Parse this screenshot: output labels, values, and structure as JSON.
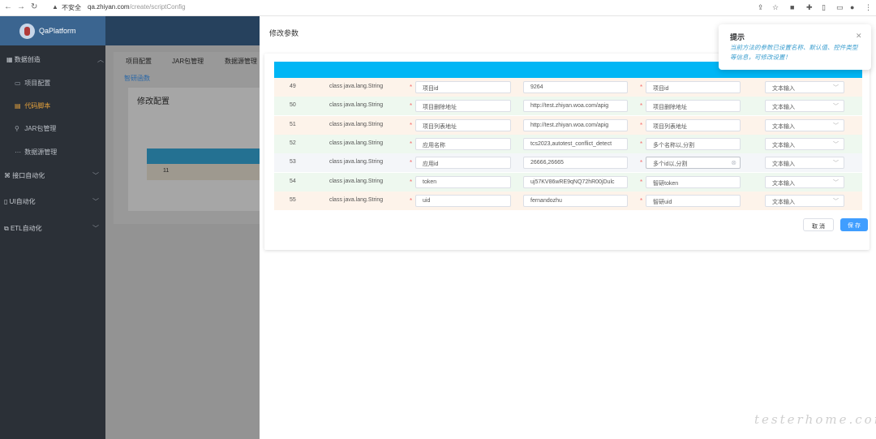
{
  "browser": {
    "security_label": "不安全",
    "url_host": "qa.zhiyan.com",
    "url_path": "/create/scriptConfig"
  },
  "app": {
    "name": "QaPlatform"
  },
  "sidebar": {
    "groups": [
      {
        "label": "数据创造"
      },
      {
        "label": "接口自动化"
      },
      {
        "label": "UI自动化"
      },
      {
        "label": "ETL自动化"
      }
    ],
    "items": [
      {
        "label": "项目配置"
      },
      {
        "label": "代码脚本"
      },
      {
        "label": "JAR包管理"
      },
      {
        "label": "数据源管理"
      }
    ]
  },
  "background_page": {
    "tabs": [
      "项目配置",
      "JAR包管理",
      "数据源管理"
    ],
    "link": "智研函数",
    "panel_title": "修改配置",
    "row_value": "11"
  },
  "dialog": {
    "title": "修改参数",
    "rows": [
      {
        "index": "49",
        "type": "class java.lang.String",
        "name": "项目id",
        "default": "9264",
        "hint": "项目id",
        "control": "文本输入"
      },
      {
        "index": "50",
        "type": "class java.lang.String",
        "name": "项目删除地址",
        "default": "http://test.zhiyan.woa.com/apig",
        "hint": "项目删除地址",
        "control": "文本输入"
      },
      {
        "index": "51",
        "type": "class java.lang.String",
        "name": "项目列表地址",
        "default": "http://test.zhiyan.woa.com/apig",
        "hint": "项目列表地址",
        "control": "文本输入"
      },
      {
        "index": "52",
        "type": "class java.lang.String",
        "name": "应用名称",
        "default": "tcs2023,autotest_conflict_detect",
        "hint": "多个名称以,分割",
        "control": "文本输入"
      },
      {
        "index": "53",
        "type": "class java.lang.String",
        "name": "应用id",
        "default": "26666,26665",
        "hint": "多个id以,分割",
        "control": "文本输入"
      },
      {
        "index": "54",
        "type": "class java.lang.String",
        "name": "token",
        "default": "uj57KV86wRE9qNQ72hR00jDulc",
        "hint": "智研token",
        "control": "文本输入"
      },
      {
        "index": "55",
        "type": "class java.lang.String",
        "name": "uid",
        "default": "fernandozhu",
        "hint": "智研uid",
        "control": "文本输入"
      }
    ],
    "cancel_label": "取 消",
    "save_label": "保 存"
  },
  "notification": {
    "title": "提示",
    "body": "当前方法的参数已设置名称、默认值、控件类型等信息，可修改设置！"
  },
  "watermark": "testerhome.com",
  "colors": {
    "header_bg": "#3b6590",
    "sidebar_bg": "#2b3037",
    "table_head": "#00b6f5",
    "primary": "#409eff",
    "required": "#f56c6c"
  }
}
